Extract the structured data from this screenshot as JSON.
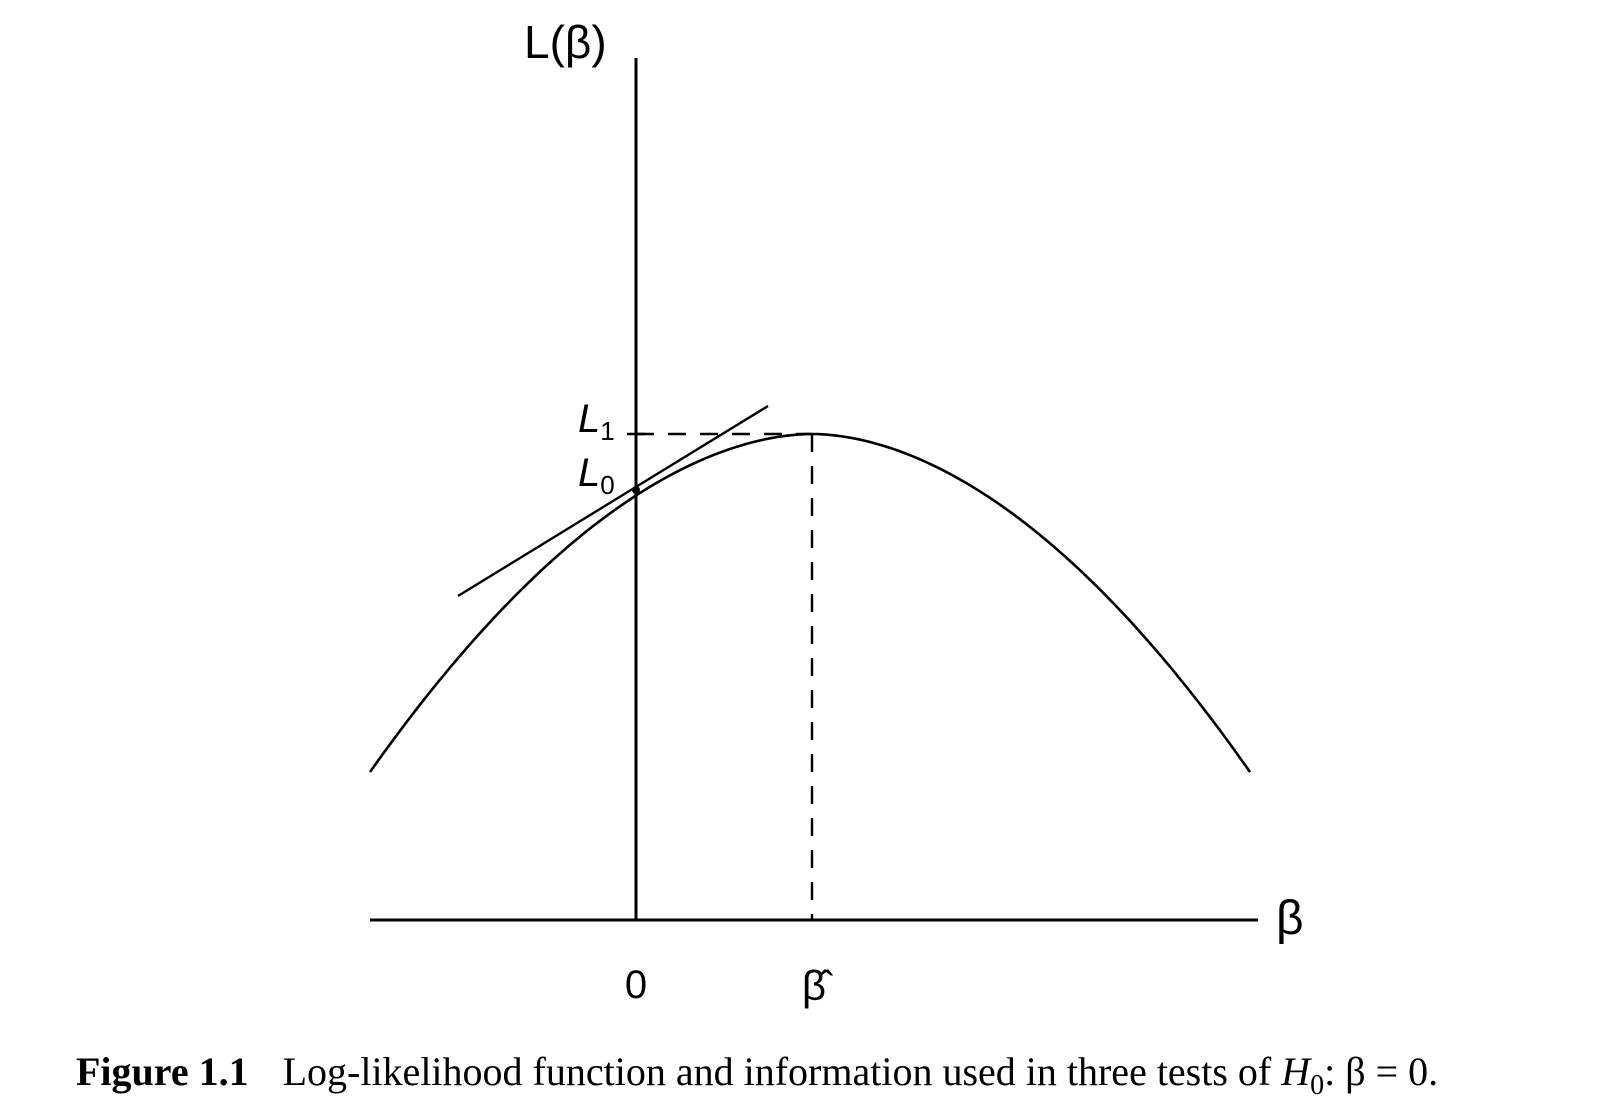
{
  "figure": {
    "y_axis_label": "L(β)",
    "x_axis_label": "β",
    "x_tick_zero": "0",
    "x_tick_hat": "β̂",
    "l1_label": "L1",
    "l0_label": "L0"
  },
  "caption": {
    "label": "Figure",
    "number": "1.1",
    "text_before": "Log-likelihood function and information used in three tests of ",
    "h_symbol": "H",
    "h_subscript": "0",
    "text_after": ": β = 0."
  },
  "chart_data": {
    "type": "line",
    "title": "",
    "xlabel": "β",
    "ylabel": "L(β)",
    "curve": "concave log-likelihood parabola",
    "x_ticks": [
      "0",
      "β̂"
    ],
    "y_marks": [
      "L1",
      "L0"
    ],
    "annotations": [
      "tangent line at (0, L0)",
      "dashed horizontal line from L1 to the maximum",
      "dashed vertical line from the maximum down to β̂"
    ],
    "grid": false,
    "legend": "none"
  }
}
